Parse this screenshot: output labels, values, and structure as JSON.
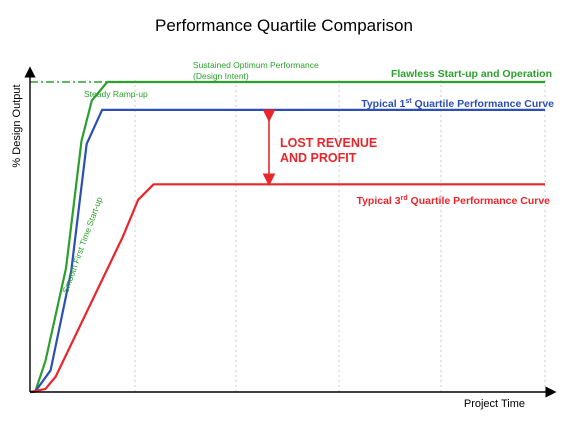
{
  "chart_data": {
    "type": "line",
    "title": "Performance Quartile Comparison",
    "xlabel": "Project Time",
    "ylabel": "% Design Output",
    "grid": "vertical dotted",
    "series": [
      {
        "name": "Flawless Start-up and Operation",
        "color": "#2ca02c",
        "points": [
          [
            0,
            0
          ],
          [
            1,
            0.1
          ],
          [
            3,
            10
          ],
          [
            7,
            40
          ],
          [
            10,
            81
          ],
          [
            12,
            94
          ],
          [
            15,
            100
          ],
          [
            100,
            100
          ]
        ]
      },
      {
        "name": "Typical 1st Quartile Performance Curve",
        "color": "#2b4fb5",
        "points": [
          [
            0,
            0
          ],
          [
            1,
            0.1
          ],
          [
            4,
            7
          ],
          [
            8,
            39
          ],
          [
            11,
            80
          ],
          [
            14,
            91
          ],
          [
            16,
            91
          ],
          [
            100,
            91
          ]
        ]
      },
      {
        "name": "Typical 3rd Quartile Performance Curve",
        "color": "#e8262b",
        "points": [
          [
            0,
            0
          ],
          [
            3,
            1
          ],
          [
            5,
            5
          ],
          [
            18,
            50
          ],
          [
            21,
            62
          ],
          [
            24,
            67
          ],
          [
            100,
            67
          ]
        ]
      }
    ],
    "target_line": {
      "y": 100,
      "style": "dash-dot",
      "color": "#2ca02c"
    },
    "annotations": {
      "sustained_1": "Sustained Optimum Performance",
      "sustained_2": "(Design Intent)",
      "steady_rampup": "Steady Ramp-up",
      "smooth_startup": "Smooth First Time Start-up",
      "lost_revenue_1": "LOST REVENUE",
      "lost_revenue_2": "AND PROFIT"
    },
    "label_texts": {
      "flawless": "Flawless Start-up and Operation",
      "q1_prefix": "Typical 1",
      "q1_sup": "st",
      "q1_suffix": " Quartile Performance Curve",
      "q3_prefix": "Typical 3",
      "q3_sup": "rd",
      "q3_suffix": " Quartile Performance Curve"
    },
    "colors": {
      "green": "#2ca02c",
      "blue": "#2b4fb5",
      "red": "#e8262b",
      "annotation_red": "#e8262b",
      "axis": "#000000",
      "grid": "#cccccc"
    }
  }
}
